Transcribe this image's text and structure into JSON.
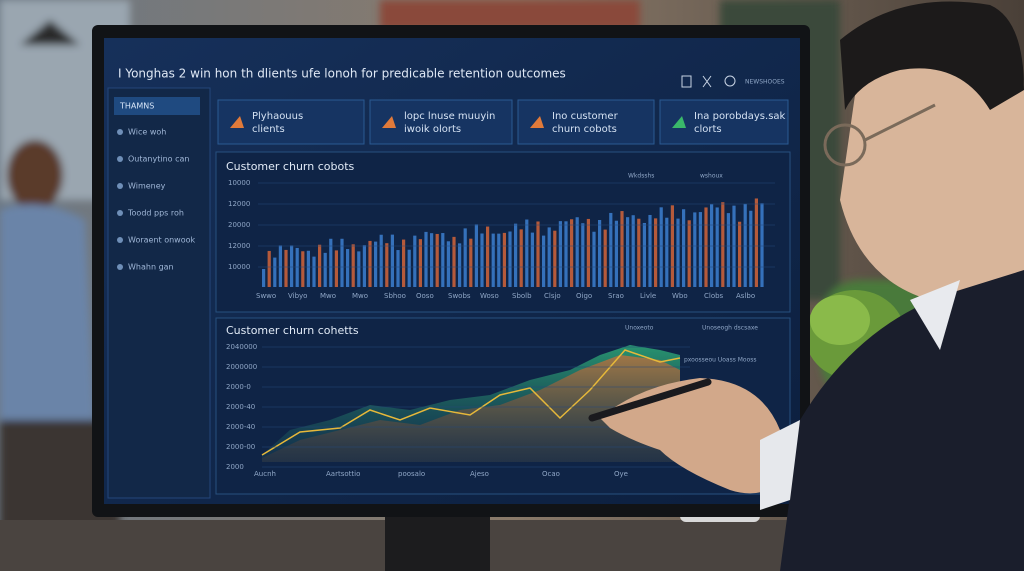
{
  "screen": {
    "title": "I Yonghas 2 win hon th dlients ufe lonoh for predicable retention outcomes",
    "toolbar_label": "NEWSHOOES",
    "sidebar": {
      "heading": "THAMNS",
      "items": [
        "Wice woh",
        "Outanytino can",
        "Wimeney",
        "Toodd pps roh",
        "Woraent onwook",
        "Whahn gan"
      ]
    },
    "cards": [
      "Plyhaouus clients",
      "lopc lnuse muuyin iwoik olorts",
      "Ino customer churn cobots",
      "Ina porobdays.sak clorts"
    ],
    "charts": [
      {
        "title": "Customer churn cobots",
        "legend": [
          "Wkdsshs",
          "wshoux"
        ],
        "y_labels": [
          "10000",
          "12000",
          "20000",
          "12000",
          "10000"
        ],
        "x_labels": [
          "Swwo",
          "Vibyo",
          "Mwo",
          "Mwo",
          "Sbhoo",
          "Ooso",
          "Swobs",
          "Woso",
          "Sbolb",
          "Clsjo",
          "Oigo",
          "Srao",
          "Livle",
          "Wbo",
          "Clobs",
          "Aslbo"
        ]
      },
      {
        "title": "Customer churn cohetts",
        "legend": [
          "Unoxeoto",
          "Unoseogh dscsaxe"
        ],
        "annotation": "pxoosseou Uoass Mooss",
        "y_labels": [
          "2040000",
          "2000000",
          "2000-0",
          "2000-40",
          "2000-40",
          "2000-00",
          "2000"
        ],
        "x_labels": [
          "Aucnh",
          "Aartsottio",
          "poosalo",
          "Ajeso",
          "Ocao",
          "Oye"
        ]
      }
    ]
  }
}
